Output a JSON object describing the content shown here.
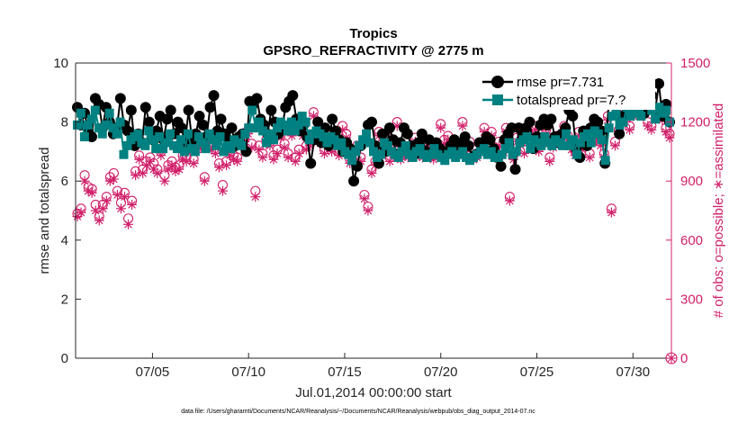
{
  "chart_data": {
    "type": "line",
    "title": "Tropics",
    "subtitle": "GPSRO_REFRACTIVITY @ 2775 m",
    "xlabel": "Jul.01,2014 00:00:00 start",
    "ylabel_left": "rmse and totalspread",
    "ylabel_right": "# of obs: o=possible; ∗=assimilated",
    "xlim": [
      1,
      32
    ],
    "ylim_left": [
      0,
      10
    ],
    "ylim_right": [
      0,
      1500
    ],
    "x_ticks": [
      {
        "value": 5,
        "label": "07/05"
      },
      {
        "value": 10,
        "label": "07/10"
      },
      {
        "value": 15,
        "label": "07/15"
      },
      {
        "value": 20,
        "label": "07/20"
      },
      {
        "value": 25,
        "label": "07/25"
      },
      {
        "value": 30,
        "label": "07/30"
      }
    ],
    "y_ticks_left": [
      "0",
      "2",
      "4",
      "6",
      "8",
      "10"
    ],
    "y_ticks_right": [
      "0",
      "300",
      "600",
      "900",
      "1200",
      "1500"
    ],
    "legend": [
      "rmse pr=7.731",
      "totalspread pr=7.?"
    ],
    "legend_position": "top-right",
    "footer": "data file: /Users/gharamti/Documents/NCAR/Reanalysis/~/Documents/NCAR/Reanalysis/webpub/obs_diag_output_2014-07.nc",
    "colors": {
      "rmse": "#000000",
      "totalspread": "#008080",
      "obs": "#d0206a"
    },
    "series": [
      {
        "name": "rmse",
        "axis": "left",
        "marker": "circle",
        "values": [
          8.5,
          7.9,
          8.3,
          7.7,
          7.5,
          8.8,
          8.6,
          7.8,
          8.5,
          8.0,
          7.6,
          7.8,
          8.8,
          7.9,
          7.7,
          8.4,
          7.2,
          7.6,
          7.3,
          8.5,
          8.0,
          7.4,
          7.7,
          8.2,
          7.4,
          8.1,
          8.4,
          7.6,
          8.0,
          7.8,
          7.3,
          8.4,
          7.3,
          7.6,
          8.2,
          7.9,
          7.5,
          8.5,
          8.9,
          7.7,
          8.1,
          7.6,
          7.4,
          7.8,
          7.2,
          7.5,
          7.6,
          7.0,
          8.7,
          8.6,
          8.8,
          8.1,
          7.9,
          7.6,
          8.4,
          8.0,
          7.6,
          7.8,
          8.5,
          8.7,
          8.9,
          8.1,
          7.7,
          7.9,
          7.5,
          6.6,
          7.4,
          8.0,
          7.3,
          7.8,
          7.2,
          8.1,
          7.7,
          7.4,
          7.0,
          7.3,
          7.1,
          6.0,
          6.5,
          7.2,
          7.4,
          7.9,
          8.0,
          7.2,
          6.6,
          7.6,
          7.0,
          7.8,
          7.4,
          6.9,
          7.3,
          7.8,
          7.6,
          7.2,
          6.9,
          7.3,
          7.6,
          7.0,
          7.4,
          7.0,
          7.3,
          7.1,
          6.9,
          7.0,
          7.2,
          7.4,
          7.1,
          7.3,
          7.5,
          7.2,
          6.8,
          6.9,
          7.3,
          7.2,
          7.5,
          7.4,
          7.1,
          6.8,
          6.5,
          7.4,
          7.6,
          7.8,
          6.4,
          7.8,
          7.6,
          7.8,
          8.0,
          7.1,
          7.5,
          7.9,
          8.1,
          7.9,
          8.1,
          7.5,
          7.3,
          7.6,
          7.8,
          8.4,
          8.2,
          7.1,
          6.8,
          7.7,
          7.2,
          7.8,
          8.1,
          8.0,
          7.7,
          6.6,
          8.6,
          8.7,
          8.8,
          7.6,
          8.2,
          8.5,
          8.4,
          8.8,
          9.0,
          8.6,
          8.3,
          8.6,
          8.9,
          8.4,
          9.3,
          8.2,
          8.6,
          8.0
        ]
      },
      {
        "name": "totalspread",
        "axis": "left",
        "marker": "square",
        "values": [
          7.9,
          8.3,
          7.5,
          7.9,
          8.1,
          8.4,
          7.8,
          7.6,
          7.9,
          8.3,
          7.8,
          7.6,
          8.0,
          6.9,
          7.2,
          7.4,
          7.5,
          7.6,
          7.3,
          7.2,
          7.7,
          7.4,
          7.1,
          7.5,
          7.1,
          7.3,
          7.6,
          7.2,
          7.1,
          7.4,
          7.0,
          7.6,
          7.1,
          7.0,
          7.5,
          7.3,
          7.1,
          7.6,
          7.4,
          7.2,
          7.5,
          7.0,
          7.2,
          7.1,
          7.4,
          7.3,
          7.2,
          7.6,
          7.8,
          8.4,
          7.8,
          8.0,
          7.7,
          7.3,
          7.6,
          7.4,
          7.8,
          8.0,
          7.9,
          7.7,
          8.0,
          7.7,
          7.9,
          8.2,
          8.0,
          7.4,
          7.6,
          7.7,
          7.6,
          7.5,
          7.3,
          7.5,
          7.4,
          7.2,
          7.3,
          7.0,
          6.9,
          6.7,
          7.0,
          7.2,
          7.4,
          7.6,
          7.3,
          7.0,
          6.8,
          6.9,
          7.3,
          7.2,
          7.0,
          6.9,
          6.8,
          7.0,
          7.2,
          6.9,
          6.8,
          7.0,
          7.1,
          6.9,
          6.8,
          6.9,
          7.1,
          6.9,
          6.8,
          6.7,
          6.9,
          7.0,
          6.8,
          6.9,
          7.0,
          6.8,
          6.7,
          6.8,
          6.9,
          7.0,
          7.1,
          6.9,
          7.0,
          6.8,
          6.8,
          6.9,
          7.1,
          7.3,
          6.9,
          7.0,
          7.3,
          7.4,
          7.5,
          7.1,
          7.4,
          7.3,
          7.2,
          7.5,
          7.3,
          7.2,
          7.4,
          7.3,
          7.2,
          7.6,
          7.2,
          7.4,
          6.9,
          7.3,
          7.5,
          7.6,
          7.3,
          7.7,
          7.6,
          7.4,
          6.7,
          7.8,
          8.2,
          8.3,
          7.9,
          8.0,
          8.5,
          8.2,
          8.4,
          8.3,
          8.2,
          8.6,
          8.7,
          8.4,
          8.1,
          8.5,
          8.3,
          8.4,
          8.0
        ]
      },
      {
        "name": "possible",
        "axis": "right",
        "marker": "circle-open",
        "values": [
          735,
          760,
          930,
          870,
          860,
          780,
          720,
          780,
          820,
          920,
          940,
          850,
          790,
          840,
          710,
          800,
          950,
          1030,
          960,
          1000,
          1020,
          990,
          960,
          1050,
          930,
          980,
          1000,
          970,
          980,
          1030,
          1020,
          1070,
          1010,
          1080,
          1090,
          920,
          1110,
          1080,
          1060,
          990,
          880,
          1000,
          1050,
          1030,
          1020,
          1100,
          1120,
          1160,
          1090,
          850,
          1080,
          1040,
          1110,
          1100,
          1030,
          1060,
          1140,
          1090,
          1040,
          1150,
          1020,
          1060,
          1150,
          1080,
          1100,
          1250,
          1120,
          1160,
          1060,
          1110,
          1070,
          1100,
          1050,
          1180,
          1140,
          1010,
          1050,
          1080,
          1020,
          830,
          770,
          960,
          1000,
          1150,
          1090,
          1130,
          1020,
          1110,
          1200,
          1030,
          1070,
          1040,
          1060,
          1120,
          1050,
          1040,
          1080,
          1100,
          1030,
          1060,
          1190,
          1110,
          1130,
          1080,
          1050,
          1080,
          1200,
          1070,
          1100,
          1030,
          1040,
          1080,
          1170,
          1120,
          1150,
          1060,
          1100,
          1050,
          1170,
          820,
          1030,
          1120,
          1100,
          1060,
          1150,
          1100,
          1180,
          1070,
          1140,
          1160,
          1020,
          1090,
          1130,
          1120,
          1180,
          1130,
          1080,
          1050,
          1150,
          1080,
          1100,
          1040,
          1120,
          1160,
          1100,
          1040,
          1230,
          760,
          1100,
          1160,
          1270,
          1220,
          1180,
          1250,
          1320,
          1290,
          1310,
          1200,
          1180,
          1270,
          1260,
          1230,
          1170,
          1140
        ]
      },
      {
        "name": "assimilated",
        "axis": "right",
        "marker": "asterisk",
        "values": [
          720,
          740,
          900,
          850,
          840,
          750,
          700,
          760,
          800,
          900,
          910,
          830,
          760,
          820,
          680,
          780,
          930,
          1010,
          940,
          980,
          1000,
          960,
          940,
          1030,
          900,
          960,
          980,
          950,
          960,
          1010,
          1000,
          1050,
          990,
          1060,
          1070,
          900,
          1090,
          1060,
          1040,
          970,
          850,
          980,
          1030,
          1010,
          1000,
          1080,
          1100,
          1140,
          1070,
          820,
          1060,
          1020,
          1090,
          1080,
          1010,
          1040,
          1120,
          1070,
          1020,
          1130,
          1000,
          1040,
          1130,
          1060,
          1080,
          1230,
          1100,
          1140,
          1040,
          1090,
          1050,
          1080,
          1030,
          1160,
          1120,
          990,
          1030,
          1060,
          1000,
          810,
          750,
          940,
          980,
          1130,
          1070,
          1110,
          1000,
          1090,
          1180,
          1010,
          1050,
          1020,
          1040,
          1100,
          1030,
          1020,
          1060,
          1080,
          1010,
          1040,
          1170,
          1090,
          1110,
          1060,
          1030,
          1060,
          1180,
          1050,
          1080,
          1010,
          1020,
          1060,
          1150,
          1100,
          1130,
          1040,
          1080,
          1030,
          1150,
          800,
          1010,
          1100,
          1080,
          1040,
          1130,
          1080,
          1160,
          1050,
          1120,
          1140,
          1000,
          1070,
          1110,
          1100,
          1160,
          1110,
          1060,
          1030,
          1130,
          1060,
          1080,
          1020,
          1100,
          1140,
          1080,
          1020,
          1210,
          740,
          1080,
          1140,
          1250,
          1200,
          1160,
          1230,
          1300,
          1270,
          1290,
          1180,
          1160,
          1250,
          1240,
          1210,
          1150,
          1120
        ]
      }
    ]
  }
}
